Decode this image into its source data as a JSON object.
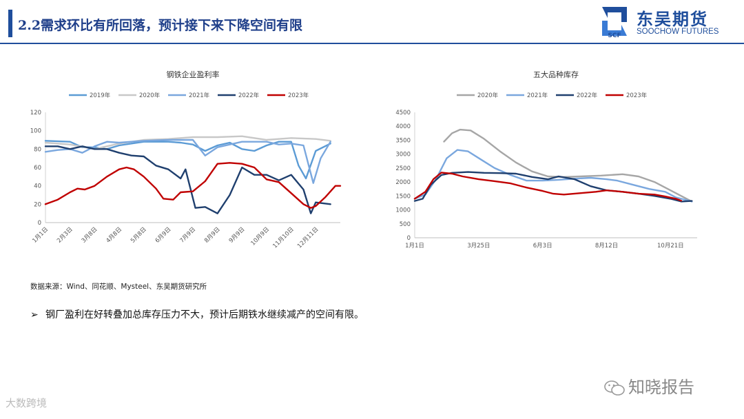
{
  "header": {
    "title": "2.2需求环比有所回落，预计接下来下降空间有限"
  },
  "logo": {
    "mark_text": "SCF",
    "name_cn": "东吴期货",
    "name_en": "SOOCHOW FUTURES"
  },
  "source_note": "数据来源：Wind、同花顺、Mysteel、东吴期货研究所",
  "bullet": {
    "marker": "➢",
    "text": "钢厂盈利在好转叠加总库存压力不大，预计后期铁水继续减产的空间有限。"
  },
  "watermarks": {
    "right": "知晓报告",
    "left": "大数跨境"
  },
  "colors": {
    "2019": "#5b9bd5",
    "2020": "#c8c8c8",
    "2021": "#7aa7de",
    "2022": "#1f3f6e",
    "2023": "#c00000",
    "2020_inv": "#a6a6a6"
  },
  "chart_data": [
    {
      "type": "line",
      "title": "钢铁企业盈利率",
      "x": [
        "1月1日",
        "2月3日",
        "3月8日",
        "4月8日",
        "5月8日",
        "6月9日",
        "7月9日",
        "8月9日",
        "9月9日",
        "10月9日",
        "11月10日",
        "12月11日"
      ],
      "ylim": [
        0,
        120
      ],
      "yticks": [
        0,
        20,
        40,
        60,
        80,
        100,
        120
      ],
      "series": [
        {
          "name": "2019年",
          "color_key": "2019",
          "points": [
            [
              0,
              89
            ],
            [
              1,
              88
            ],
            [
              1.5,
              82
            ],
            [
              2,
              82
            ],
            [
              2.5,
              80
            ],
            [
              3,
              84
            ],
            [
              3.5,
              86
            ],
            [
              4,
              88
            ],
            [
              5,
              88
            ],
            [
              5.5,
              87
            ],
            [
              6,
              85
            ],
            [
              6.5,
              78
            ],
            [
              7,
              84
            ],
            [
              7.5,
              87
            ],
            [
              8,
              80
            ],
            [
              8.5,
              78
            ],
            [
              9,
              84
            ],
            [
              9.5,
              88
            ],
            [
              10,
              88
            ],
            [
              10.3,
              62
            ],
            [
              10.6,
              48
            ],
            [
              11,
              78
            ],
            [
              11.6,
              86
            ]
          ]
        },
        {
          "name": "2020年",
          "color_key": "2020",
          "points": [
            [
              0,
              87
            ],
            [
              1,
              85
            ],
            [
              2,
              80
            ],
            [
              3,
              86
            ],
            [
              4,
              90
            ],
            [
              5,
              91
            ],
            [
              6,
              93
            ],
            [
              7,
              93
            ],
            [
              8,
              94
            ],
            [
              9,
              90
            ],
            [
              10,
              92
            ],
            [
              11,
              91
            ],
            [
              11.6,
              89
            ]
          ]
        },
        {
          "name": "2021年",
          "color_key": "2021",
          "points": [
            [
              0,
              77
            ],
            [
              0.5,
              79
            ],
            [
              1,
              80
            ],
            [
              1.5,
              76
            ],
            [
              2,
              83
            ],
            [
              2.5,
              88
            ],
            [
              3,
              87
            ],
            [
              4,
              89
            ],
            [
              5,
              90
            ],
            [
              6,
              90
            ],
            [
              6.5,
              73
            ],
            [
              7,
              82
            ],
            [
              7.5,
              85
            ],
            [
              8,
              88
            ],
            [
              9,
              88
            ],
            [
              9.5,
              85
            ],
            [
              10,
              86
            ],
            [
              10.5,
              84
            ],
            [
              10.9,
              43
            ],
            [
              11.2,
              70
            ],
            [
              11.6,
              88
            ]
          ]
        },
        {
          "name": "2022年",
          "color_key": "2022",
          "points": [
            [
              0,
              83
            ],
            [
              0.5,
              83
            ],
            [
              1,
              80
            ],
            [
              1.5,
              83
            ],
            [
              2,
              80
            ],
            [
              2.5,
              80
            ],
            [
              3,
              76
            ],
            [
              3.5,
              73
            ],
            [
              4,
              72
            ],
            [
              4.5,
              62
            ],
            [
              5,
              58
            ],
            [
              5.5,
              48
            ],
            [
              5.7,
              58
            ],
            [
              6.1,
              16
            ],
            [
              6.5,
              17
            ],
            [
              7,
              10
            ],
            [
              7.5,
              30
            ],
            [
              8,
              60
            ],
            [
              8.5,
              52
            ],
            [
              9,
              52
            ],
            [
              9.5,
              46
            ],
            [
              10,
              52
            ],
            [
              10.5,
              36
            ],
            [
              10.8,
              10
            ],
            [
              11,
              22
            ],
            [
              11.6,
              20
            ]
          ]
        },
        {
          "name": "2023年",
          "color_key": "2023",
          "points": [
            [
              0,
              20
            ],
            [
              0.5,
              25
            ],
            [
              1,
              33
            ],
            [
              1.3,
              37
            ],
            [
              1.6,
              36
            ],
            [
              2,
              40
            ],
            [
              2.5,
              50
            ],
            [
              3,
              58
            ],
            [
              3.3,
              60
            ],
            [
              3.6,
              58
            ],
            [
              4,
              50
            ],
            [
              4.5,
              37
            ],
            [
              4.8,
              26
            ],
            [
              5.2,
              25
            ],
            [
              5.5,
              33
            ],
            [
              6,
              34
            ],
            [
              6.5,
              45
            ],
            [
              7,
              64
            ],
            [
              7.5,
              65
            ],
            [
              8,
              64
            ],
            [
              8.5,
              60
            ],
            [
              9,
              47
            ],
            [
              9.5,
              44
            ],
            [
              10,
              32
            ],
            [
              10.5,
              20
            ],
            [
              10.8,
              16
            ],
            [
              11,
              18
            ],
            [
              11.4,
              28
            ],
            [
              11.8,
              40
            ],
            [
              12,
              40
            ]
          ]
        }
      ]
    },
    {
      "type": "line",
      "title": "五大品种库存",
      "x": [
        "1月1日",
        "3月25日",
        "6月3日",
        "8月12日",
        "10月21日"
      ],
      "ylim": [
        0,
        4500
      ],
      "yticks": [
        0,
        500,
        1000,
        1500,
        2000,
        2500,
        3000,
        3500,
        4000,
        4500
      ],
      "series": [
        {
          "name": "2020年",
          "color_key": "2020_inv",
          "points": [
            [
              0.55,
              3450
            ],
            [
              0.7,
              3750
            ],
            [
              0.85,
              3880
            ],
            [
              1.05,
              3850
            ],
            [
              1.3,
              3550
            ],
            [
              1.6,
              3100
            ],
            [
              1.9,
              2700
            ],
            [
              2.2,
              2380
            ],
            [
              2.5,
              2200
            ],
            [
              2.8,
              2180
            ],
            [
              3.1,
              2200
            ],
            [
              3.5,
              2230
            ],
            [
              3.9,
              2280
            ],
            [
              4.2,
              2200
            ],
            [
              4.5,
              2000
            ],
            [
              4.8,
              1700
            ],
            [
              5.0,
              1500
            ],
            [
              5.2,
              1300
            ]
          ]
        },
        {
          "name": "2021年",
          "color_key": "2021",
          "points": [
            [
              0,
              1400
            ],
            [
              0.2,
              1550
            ],
            [
              0.4,
              2100
            ],
            [
              0.6,
              2850
            ],
            [
              0.8,
              3150
            ],
            [
              1.0,
              3100
            ],
            [
              1.25,
              2800
            ],
            [
              1.5,
              2500
            ],
            [
              1.8,
              2250
            ],
            [
              2.1,
              2050
            ],
            [
              2.4,
              2050
            ],
            [
              2.7,
              2080
            ],
            [
              3.0,
              2120
            ],
            [
              3.3,
              2150
            ],
            [
              3.6,
              2100
            ],
            [
              3.8,
              2050
            ],
            [
              4.1,
              1900
            ],
            [
              4.4,
              1750
            ],
            [
              4.7,
              1650
            ],
            [
              4.9,
              1450
            ],
            [
              5.2,
              1300
            ]
          ]
        },
        {
          "name": "2022年",
          "color_key": "2022",
          "points": [
            [
              0,
              1320
            ],
            [
              0.15,
              1400
            ],
            [
              0.3,
              1900
            ],
            [
              0.5,
              2250
            ],
            [
              0.7,
              2330
            ],
            [
              1.0,
              2360
            ],
            [
              1.3,
              2330
            ],
            [
              1.6,
              2320
            ],
            [
              1.9,
              2300
            ],
            [
              2.2,
              2180
            ],
            [
              2.5,
              2100
            ],
            [
              2.7,
              2200
            ],
            [
              3.0,
              2100
            ],
            [
              3.3,
              1850
            ],
            [
              3.6,
              1700
            ],
            [
              3.9,
              1650
            ],
            [
              4.2,
              1580
            ],
            [
              4.5,
              1500
            ],
            [
              4.8,
              1400
            ],
            [
              5.0,
              1300
            ],
            [
              5.2,
              1320
            ]
          ]
        },
        {
          "name": "2023年",
          "color_key": "2023",
          "points": [
            [
              0,
              1400
            ],
            [
              0.2,
              1650
            ],
            [
              0.35,
              2100
            ],
            [
              0.5,
              2340
            ],
            [
              0.7,
              2300
            ],
            [
              0.9,
              2200
            ],
            [
              1.2,
              2100
            ],
            [
              1.5,
              2030
            ],
            [
              1.8,
              1950
            ],
            [
              2.1,
              1800
            ],
            [
              2.4,
              1680
            ],
            [
              2.6,
              1580
            ],
            [
              2.8,
              1550
            ],
            [
              3.1,
              1600
            ],
            [
              3.4,
              1650
            ],
            [
              3.6,
              1700
            ],
            [
              3.9,
              1650
            ],
            [
              4.2,
              1580
            ],
            [
              4.5,
              1550
            ],
            [
              4.7,
              1480
            ],
            [
              4.9,
              1400
            ],
            [
              5.0,
              1330
            ]
          ]
        }
      ]
    }
  ]
}
